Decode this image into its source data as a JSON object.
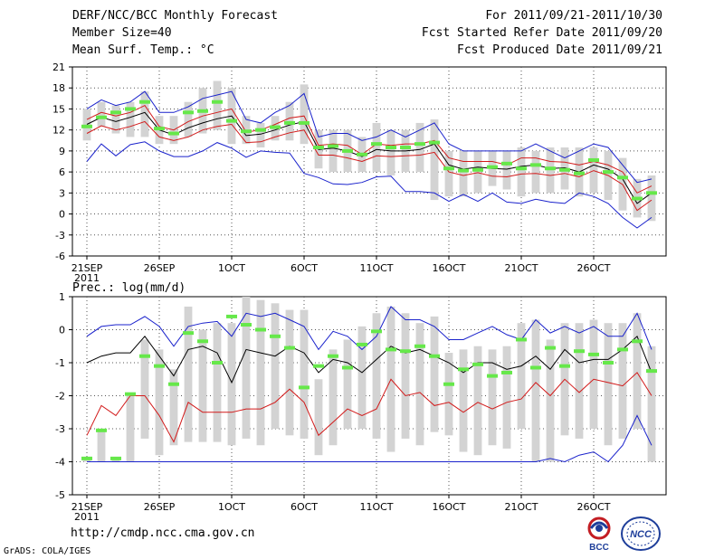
{
  "header": {
    "title": "DERF/NCC/BCC Monthly Forecast",
    "member": "Member Size=40",
    "variable": "Mean Surf. Temp.: °C",
    "period": "For 2011/09/21-2011/10/30",
    "refer": "Fcst Started Refer Date 2011/09/20",
    "produced": "Fcst Produced Date 2011/09/21"
  },
  "footer": {
    "url": "http://cmdp.ncc.cma.gov.cn",
    "grads": "GrADS: COLA/IGES",
    "logo_left_text": "BCC",
    "logo_right_text": "NCC"
  },
  "colors": {
    "box": "#d3d3d3",
    "green": "#66e84a",
    "mean": "#000000",
    "band": "#d21a1a",
    "envelope": "#1a22cc",
    "grid": "#555555"
  },
  "chart_data": [
    {
      "type": "box-line",
      "title": "Mean Surf. Temp.: °C",
      "x_days": [
        0,
        1,
        2,
        3,
        4,
        5,
        6,
        7,
        8,
        9,
        10,
        11,
        12,
        13,
        14,
        15,
        16,
        17,
        18,
        19,
        20,
        21,
        22,
        23,
        24,
        25,
        26,
        27,
        28,
        29,
        30,
        31,
        32,
        33,
        34,
        35,
        36,
        37,
        38,
        39
      ],
      "xtick_labels": [
        "21SEP",
        "26SEP",
        "1OCT",
        "6OCT",
        "11OCT",
        "16OCT",
        "21OCT",
        "26OCT"
      ],
      "xtick_days": [
        0,
        5,
        10,
        15,
        20,
        25,
        30,
        35
      ],
      "year_label": "2011",
      "ylim": [
        -6,
        21
      ],
      "yticks": [
        -6,
        -3,
        0,
        3,
        6,
        9,
        12,
        15,
        18,
        21
      ],
      "series": [
        {
          "name": "max",
          "values": [
            15,
            16.3,
            15.5,
            16,
            17.5,
            14.5,
            14.5,
            15.3,
            16.5,
            17,
            17.5,
            13.5,
            13,
            14.5,
            15.5,
            17.2,
            11,
            11.5,
            11.5,
            10.5,
            11,
            12,
            11,
            12,
            13,
            10,
            9,
            9,
            9,
            9,
            9,
            10,
            9,
            8,
            9,
            10,
            9.5,
            7,
            4.5,
            5
          ]
        },
        {
          "name": "upper",
          "values": [
            13.5,
            14.5,
            14,
            14.5,
            15.5,
            12.5,
            12,
            13.2,
            14,
            14.5,
            15,
            11.7,
            12,
            12.8,
            13.7,
            14,
            9.8,
            10,
            9.8,
            8.5,
            10,
            9.8,
            10,
            10,
            10.5,
            8,
            7.5,
            7.5,
            7.5,
            7,
            8,
            8,
            7.5,
            7.4,
            7,
            7.5,
            7,
            6,
            3,
            4
          ]
        },
        {
          "name": "mean",
          "values": [
            12.8,
            13.8,
            13.2,
            13.8,
            14.5,
            12,
            11.3,
            12.3,
            13,
            13.6,
            14,
            11.2,
            11.4,
            12,
            12.7,
            13.2,
            9.2,
            9.4,
            9,
            8.2,
            9.2,
            9,
            9,
            9.2,
            10,
            7,
            6.4,
            6.7,
            6.5,
            6.4,
            6.8,
            7,
            6.5,
            6.6,
            6,
            7,
            6.4,
            5,
            1.5,
            3
          ]
        },
        {
          "name": "lower",
          "values": [
            11.5,
            12.6,
            12,
            12.5,
            13.2,
            11,
            10.5,
            11,
            12,
            12.5,
            12.8,
            10.2,
            10.3,
            11,
            11.6,
            12,
            8.4,
            8.4,
            8,
            7.5,
            8.3,
            8.2,
            8.3,
            8.4,
            8.8,
            6,
            5.5,
            5.9,
            5.4,
            5.3,
            5.7,
            5.8,
            5.5,
            5.8,
            5.3,
            6.2,
            5.5,
            4.2,
            0.5,
            2
          ]
        },
        {
          "name": "min",
          "values": [
            7.5,
            10,
            8.3,
            9.9,
            10.3,
            9,
            8.2,
            8.2,
            9,
            10.2,
            9.4,
            8.1,
            9,
            8.8,
            8.7,
            5.8,
            5.2,
            4.3,
            4.2,
            4.5,
            5.3,
            5.4,
            3.2,
            3.2,
            3,
            1.8,
            2.8,
            1.8,
            3,
            1.7,
            1.5,
            2.1,
            1.7,
            1.5,
            3,
            2.5,
            1.5,
            -0.5,
            -2,
            -0.5
          ]
        },
        {
          "name": "obs_green",
          "values": [
            12.5,
            13.8,
            14.5,
            15,
            16,
            12.2,
            11.5,
            14.5,
            14.7,
            16,
            13.3,
            11.8,
            12,
            12.4,
            13,
            13,
            9.5,
            9.7,
            9,
            8.5,
            10,
            9.5,
            9.5,
            10,
            10.2,
            6.5,
            6.2,
            6.3,
            6.7,
            7.2,
            6.5,
            7,
            6.5,
            6.3,
            5.8,
            7.7,
            6,
            5.2,
            2.2,
            3
          ]
        }
      ],
      "boxes": [
        [
          10.5,
          15
        ],
        [
          12.5,
          16
        ],
        [
          11.5,
          15.5
        ],
        [
          11,
          16
        ],
        [
          11,
          17.5
        ],
        [
          10,
          14
        ],
        [
          10,
          14
        ],
        [
          11,
          16
        ],
        [
          11.5,
          18
        ],
        [
          12,
          19
        ],
        [
          10,
          18
        ],
        [
          10,
          14
        ],
        [
          9.5,
          13
        ],
        [
          10.5,
          14
        ],
        [
          10.5,
          16
        ],
        [
          10,
          18.5
        ],
        [
          6.5,
          12
        ],
        [
          6,
          12
        ],
        [
          6,
          12
        ],
        [
          6,
          11
        ],
        [
          6,
          13
        ],
        [
          5.5,
          12
        ],
        [
          6,
          12
        ],
        [
          6,
          13
        ],
        [
          2,
          13.5
        ],
        [
          2.5,
          9
        ],
        [
          2.5,
          9
        ],
        [
          3,
          9
        ],
        [
          4,
          9
        ],
        [
          3.5,
          9
        ],
        [
          2.5,
          9.5
        ],
        [
          3,
          9
        ],
        [
          3,
          9.5
        ],
        [
          3.5,
          9.5
        ],
        [
          2.5,
          9.5
        ],
        [
          3,
          9.5
        ],
        [
          2,
          9
        ],
        [
          0.5,
          8
        ],
        [
          -0.5,
          5
        ],
        [
          -1,
          5.5
        ]
      ]
    },
    {
      "type": "box-line",
      "title": "Prec.: log(mm/d)",
      "x_days": [
        0,
        1,
        2,
        3,
        4,
        5,
        6,
        7,
        8,
        9,
        10,
        11,
        12,
        13,
        14,
        15,
        16,
        17,
        18,
        19,
        20,
        21,
        22,
        23,
        24,
        25,
        26,
        27,
        28,
        29,
        30,
        31,
        32,
        33,
        34,
        35,
        36,
        37,
        38,
        39
      ],
      "xtick_labels": [
        "21SEP",
        "26SEP",
        "1OCT",
        "6OCT",
        "11OCT",
        "16OCT",
        "21OCT",
        "26OCT"
      ],
      "xtick_days": [
        0,
        5,
        10,
        15,
        20,
        25,
        30,
        35
      ],
      "year_label": "2011",
      "ylim": [
        -5,
        1
      ],
      "yticks": [
        -5,
        -4,
        -3,
        -2,
        -1,
        0,
        1
      ],
      "series": [
        {
          "name": "max",
          "values": [
            -0.2,
            0.1,
            0.15,
            0.15,
            0.4,
            0.1,
            -0.5,
            0.1,
            0.2,
            0.25,
            -0.2,
            0.5,
            0.4,
            0.5,
            0.3,
            0.1,
            -0.6,
            -0.05,
            -0.2,
            -0.6,
            -0.2,
            0.7,
            0.3,
            0.3,
            0.1,
            -0.3,
            -0.3,
            -0.1,
            0.1,
            -0.15,
            -0.3,
            0.3,
            -0.1,
            0.1,
            -0.1,
            0.1,
            -0.2,
            -0.2,
            0.5,
            -0.6
          ]
        },
        {
          "name": "mean",
          "values": [
            -1,
            -0.8,
            -0.7,
            -0.7,
            -0.2,
            -0.8,
            -1.4,
            -0.6,
            -0.5,
            -0.7,
            -1.6,
            -0.6,
            -0.7,
            -0.8,
            -0.5,
            -0.7,
            -1.3,
            -0.9,
            -1,
            -1.3,
            -0.9,
            -0.5,
            -0.7,
            -0.6,
            -0.8,
            -1,
            -1.3,
            -1,
            -1,
            -1.2,
            -1.1,
            -0.8,
            -1.2,
            -0.6,
            -1,
            -0.9,
            -0.9,
            -0.6,
            -0.2,
            -1.3
          ]
        },
        {
          "name": "lower",
          "values": [
            -3.2,
            -2.3,
            -2.6,
            -2,
            -2,
            -2.6,
            -3.4,
            -2.2,
            -2.5,
            -2.5,
            -2.5,
            -2.4,
            -2.4,
            -2.2,
            -1.8,
            -2.2,
            -3.2,
            -2.8,
            -2.4,
            -2.6,
            -2.4,
            -1.5,
            -2,
            -1.9,
            -2.3,
            -2.2,
            -2.5,
            -2.2,
            -2.4,
            -2.2,
            -2.1,
            -1.6,
            -2,
            -1.5,
            -1.9,
            -1.5,
            -1.6,
            -1.7,
            -1.3,
            -2
          ]
        },
        {
          "name": "min",
          "values": [
            -4,
            -4,
            -4,
            -4,
            -4,
            -4,
            -4,
            -4,
            -4,
            -4,
            -4,
            -4,
            -4,
            -4,
            -4,
            -4,
            -4,
            -4,
            -4,
            -4,
            -4,
            -4,
            -4,
            -4,
            -4,
            -4,
            -4,
            -4,
            -4,
            -4,
            -4,
            -4,
            -3.9,
            -4,
            -3.8,
            -3.7,
            -4,
            -3.5,
            -2.6,
            -3.5
          ]
        },
        {
          "name": "obs_green",
          "values": [
            -3.9,
            -3.05,
            -3.9,
            -1.95,
            -0.8,
            -1.1,
            -1.65,
            -0.1,
            -0.35,
            -1,
            0.4,
            0.15,
            0,
            -0.2,
            -0.55,
            -1.75,
            -1.1,
            -0.8,
            -1.15,
            -0.45,
            -0.05,
            -0.6,
            -0.65,
            -0.5,
            -0.8,
            -1.65,
            -1.2,
            -1.05,
            -1.4,
            -1.3,
            -0.3,
            -1.15,
            -0.55,
            -1.1,
            -0.65,
            -0.75,
            -1,
            -0.6,
            -0.35,
            -1.25
          ]
        }
      ],
      "boxes": [
        [
          -4,
          -3.9
        ],
        [
          -4,
          -3.05
        ],
        [
          -4,
          -3.9
        ],
        [
          -4,
          -1.9
        ],
        [
          -3.3,
          -0.3
        ],
        [
          -3.8,
          -0.6
        ],
        [
          -3.5,
          -1.2
        ],
        [
          -3.4,
          0.7
        ],
        [
          -3.4,
          0
        ],
        [
          -3.4,
          0.2
        ],
        [
          -3.5,
          0.2
        ],
        [
          -3.3,
          1
        ],
        [
          -3.5,
          0.9
        ],
        [
          -3,
          0.8
        ],
        [
          -3.2,
          0.6
        ],
        [
          -3.3,
          0.6
        ],
        [
          -3.8,
          -1.5
        ],
        [
          -3.5,
          -0.6
        ],
        [
          -3,
          -0.3
        ],
        [
          -3,
          0.1
        ],
        [
          -3.3,
          0.5
        ],
        [
          -3.7,
          0.7
        ],
        [
          -3.3,
          0.5
        ],
        [
          -3.5,
          0.2
        ],
        [
          -3.1,
          0.4
        ],
        [
          -3.2,
          -0.7
        ],
        [
          -3.7,
          -0.6
        ],
        [
          -3.8,
          -0.5
        ],
        [
          -3.5,
          -0.6
        ],
        [
          -3.6,
          -0.5
        ],
        [
          -3,
          0.2
        ],
        [
          -4,
          0.3
        ],
        [
          -4,
          -0.3
        ],
        [
          -3.2,
          0.2
        ],
        [
          -3.3,
          0.2
        ],
        [
          -3,
          0.3
        ],
        [
          -3.5,
          0.2
        ],
        [
          -3.3,
          0.2
        ],
        [
          -3,
          0.5
        ],
        [
          -4,
          -0.5
        ]
      ]
    }
  ]
}
